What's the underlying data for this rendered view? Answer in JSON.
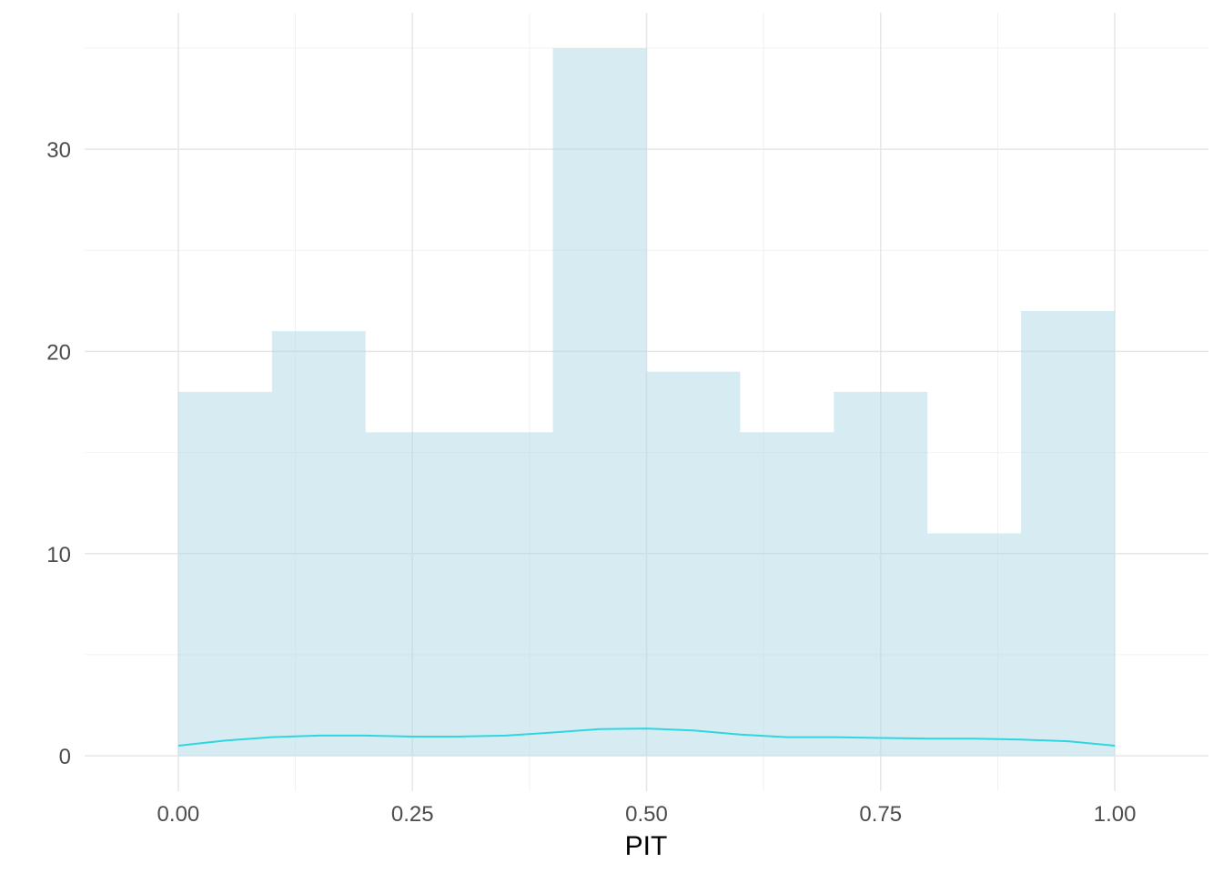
{
  "chart_data": {
    "type": "bar",
    "subtype": "histogram with density line",
    "title": "",
    "xlabel": "PIT",
    "ylabel": "",
    "xlim": [
      -0.1,
      1.1
    ],
    "ylim": [
      -1.75,
      36.75
    ],
    "grid": true,
    "legend": "none",
    "x_ticks": [
      0.0,
      0.25,
      0.5,
      0.75,
      1.0
    ],
    "x_tick_labels": [
      "0.00",
      "0.25",
      "0.50",
      "0.75",
      "1.00"
    ],
    "y_ticks": [
      0,
      10,
      20,
      30
    ],
    "y_tick_labels": [
      "0",
      "10",
      "20",
      "30"
    ],
    "bin_edges": [
      0.0,
      0.1,
      0.2,
      0.3,
      0.4,
      0.5,
      0.6,
      0.7,
      0.8,
      0.9,
      1.0
    ],
    "values": [
      18,
      21,
      16,
      16,
      35,
      19,
      16,
      18,
      11,
      22
    ],
    "density_line": {
      "x": [
        0.0,
        0.05,
        0.1,
        0.15,
        0.2,
        0.25,
        0.3,
        0.35,
        0.4,
        0.45,
        0.5,
        0.55,
        0.6,
        0.65,
        0.7,
        0.75,
        0.8,
        0.85,
        0.9,
        0.95,
        1.0
      ],
      "y": [
        0.5,
        0.75,
        0.92,
        1.0,
        1.0,
        0.95,
        0.95,
        1.0,
        1.15,
        1.32,
        1.35,
        1.25,
        1.05,
        0.92,
        0.92,
        0.88,
        0.85,
        0.85,
        0.8,
        0.72,
        0.5
      ]
    },
    "colors": {
      "bar_fill": "#add8e6",
      "bar_opacity": 0.5,
      "line": "#2fd6e0",
      "grid_major": "#e6e6e6",
      "grid_minor": "#f2f2f2"
    }
  }
}
